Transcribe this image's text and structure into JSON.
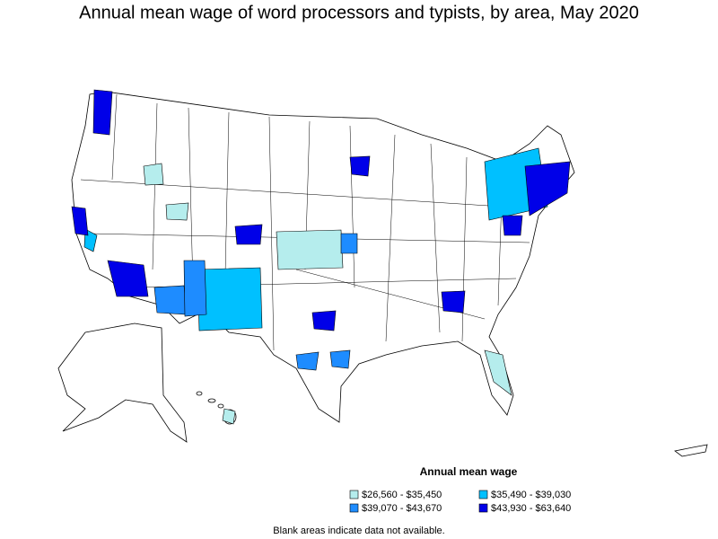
{
  "title": "Annual mean wage of word processors and typists, by area, May 2020",
  "legend": {
    "title": "Annual mean wage",
    "items": [
      {
        "label": "$26,560 - $35,450",
        "color": "#b5eded"
      },
      {
        "label": "$35,490 - $39,030",
        "color": "#00c0ff"
      },
      {
        "label": "$39,070 - $43,670",
        "color": "#1e8cff"
      },
      {
        "label": "$43,930 - $63,640",
        "color": "#0000e8"
      }
    ]
  },
  "footnote": "Blank areas indicate data not available."
}
